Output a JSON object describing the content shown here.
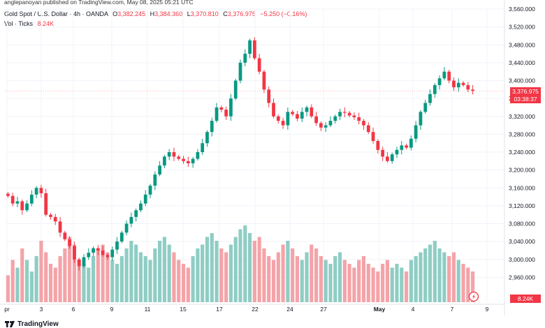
{
  "header": {
    "credit": "anglepanoyan published on TradingView.com, May 08, 2025 05:21 UTC",
    "symbol": "Gold Spot / U.S. Dollar · 4h · OANDA",
    "o_label": "O",
    "o_value": "3,382.245",
    "h_label": "H",
    "h_value": "3,384.360",
    "l_label": "L",
    "l_value": "3,370.810",
    "c_label": "C",
    "c_value": "3,376.975",
    "change": "−5.250 (−0.16%)",
    "vol_label": "Vol · Ticks",
    "vol_value": "8.24K"
  },
  "footer": {
    "brand": "TradingView"
  },
  "price_tag": {
    "price": "3,376.975",
    "countdown": "03:38:37"
  },
  "volume_tag": "8.24K",
  "colors": {
    "up": "#089981",
    "down": "#f23645",
    "up_vol": "#8fcdc4",
    "down_vol": "#f4a3a8",
    "grid": "#f0f3fa"
  },
  "chart_data": {
    "type": "candlestick",
    "xlabel": "",
    "ylabel": "",
    "ylim": [
      2920,
      3560
    ],
    "y_ticks": [
      "3,560.000",
      "3,520.000",
      "3,480.000",
      "3,440.000",
      "3,400.000",
      "3,360.000",
      "3,320.000",
      "3,280.000",
      "3,240.000",
      "3,200.000",
      "3,160.000",
      "3,120.000",
      "3,080.000",
      "3,040.000",
      "3,000.000",
      "2,960.000"
    ],
    "x_ticks": [
      "pr",
      "3",
      "6",
      "9",
      "11",
      "15",
      "17",
      "22",
      "24",
      "27",
      "May",
      "4",
      "7",
      "9"
    ],
    "current_price": 3376.975,
    "close_path": [
      3142,
      3125,
      3130,
      3110,
      3125,
      3145,
      3160,
      3148,
      3100,
      3095,
      3085,
      3060,
      3045,
      3030,
      3000,
      2985,
      3005,
      3015,
      3025,
      3020,
      3010,
      3005,
      3022,
      3040,
      3060,
      3080,
      3095,
      3110,
      3125,
      3145,
      3165,
      3190,
      3210,
      3230,
      3240,
      3230,
      3225,
      3220,
      3215,
      3225,
      3240,
      3260,
      3285,
      3310,
      3340,
      3335,
      3320,
      3360,
      3400,
      3440,
      3460,
      3490,
      3450,
      3420,
      3380,
      3350,
      3320,
      3310,
      3300,
      3330,
      3325,
      3315,
      3330,
      3340,
      3320,
      3305,
      3295,
      3300,
      3310,
      3320,
      3330,
      3328,
      3322,
      3318,
      3310,
      3300,
      3285,
      3265,
      3245,
      3230,
      3220,
      3235,
      3245,
      3255,
      3250,
      3270,
      3300,
      3330,
      3350,
      3370,
      3390,
      3405,
      3420,
      3400,
      3385,
      3395,
      3390,
      3380,
      3377
    ],
    "volume_path": [
      35,
      55,
      45,
      70,
      55,
      40,
      60,
      80,
      65,
      50,
      45,
      60,
      70,
      85,
      75,
      55,
      50,
      45,
      60,
      70,
      75,
      65,
      55,
      50,
      60,
      70,
      80,
      75,
      65,
      60,
      55,
      70,
      80,
      85,
      75,
      65,
      55,
      50,
      45,
      60,
      70,
      75,
      85,
      90,
      80,
      70,
      65,
      75,
      85,
      95,
      100,
      90,
      80,
      85,
      70,
      60,
      55,
      65,
      75,
      80,
      70,
      60,
      55,
      65,
      75,
      70,
      60,
      55,
      50,
      60,
      65,
      55,
      50,
      45,
      55,
      60,
      50,
      45,
      40,
      50,
      55,
      45,
      50,
      45,
      40,
      55,
      60,
      65,
      70,
      75,
      80,
      70,
      65,
      60,
      65,
      55,
      50,
      45,
      40
    ]
  }
}
